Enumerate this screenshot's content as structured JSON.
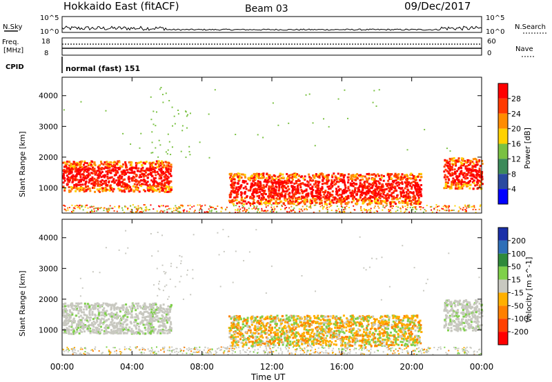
{
  "header": {
    "station": "Hokkaido East (fitACF)",
    "beam": "Beam 03",
    "date": "09/Dec/2017"
  },
  "noise_panel": {
    "left_label": "N.Sky",
    "right_label": "N.Search",
    "left_ticks": [
      "10^5",
      "10^0"
    ],
    "right_ticks": [
      "10^5",
      "10^0"
    ]
  },
  "freq_panel": {
    "label_line1": "Freq.",
    "label_line2": "[MHz]",
    "left_ticks": [
      "18",
      "8"
    ],
    "right_ticks": [
      "60",
      "0"
    ],
    "right_label": "Nave"
  },
  "cpid": {
    "label": "CPID",
    "value": "normal (fast) 151"
  },
  "chart_data": [
    {
      "type": "heatmap",
      "title": "Power",
      "xlabel": "Time UT",
      "ylabel": "Slant Range [km]",
      "xlim": [
        0,
        24
      ],
      "ylim": [
        180,
        4600
      ],
      "y_ticks": [
        "1000",
        "2000",
        "3000",
        "4000"
      ],
      "colorbar": {
        "label": "Power [dB]",
        "ticks": [
          "28",
          "24",
          "20",
          "16",
          "12",
          "8",
          "4"
        ],
        "colors": [
          "#ff0000",
          "#ff3a00",
          "#ff8c00",
          "#ffd200",
          "#7ac142",
          "#3c8a5a",
          "#2a4aa0",
          "#0000ff"
        ]
      },
      "regions": [
        {
          "t0": 0.0,
          "t1": 6.2,
          "r0": 900,
          "r1": 1900,
          "level": "high"
        },
        {
          "t0": 9.5,
          "t1": 20.5,
          "r0": 500,
          "r1": 1500,
          "level": "high"
        },
        {
          "t0": 21.8,
          "t1": 24.0,
          "r0": 1000,
          "r1": 2000,
          "level": "high"
        }
      ]
    },
    {
      "type": "heatmap",
      "title": "Velocity",
      "xlabel": "Time UT",
      "ylabel": "Slant Range [km]",
      "xlim": [
        0,
        24
      ],
      "ylim": [
        180,
        4600
      ],
      "y_ticks": [
        "1000",
        "2000",
        "3000",
        "4000"
      ],
      "colorbar": {
        "label": "Velocity [m s^-1]",
        "ticks": [
          "200",
          "100",
          "50",
          "15",
          "-15",
          "-50",
          "-100",
          "-200"
        ],
        "colors": [
          "#1a2fa8",
          "#2f6fb8",
          "#2f8a3a",
          "#7fd04a",
          "#c8c8c0",
          "#ffb000",
          "#ff8000",
          "#ff4000",
          "#ff0000"
        ]
      },
      "regions": [
        {
          "t0": 0.0,
          "t1": 6.2,
          "r0": 900,
          "r1": 1900,
          "level": "low"
        },
        {
          "t0": 9.5,
          "t1": 20.5,
          "r0": 500,
          "r1": 1500,
          "level": "negative"
        },
        {
          "t0": 21.8,
          "t1": 24.0,
          "r0": 1000,
          "r1": 2000,
          "level": "low"
        }
      ]
    }
  ],
  "x_ticks": [
    "00:00",
    "04:00",
    "08:00",
    "12:00",
    "16:00",
    "20:00",
    "00:00"
  ],
  "xlabel": "Time UT"
}
